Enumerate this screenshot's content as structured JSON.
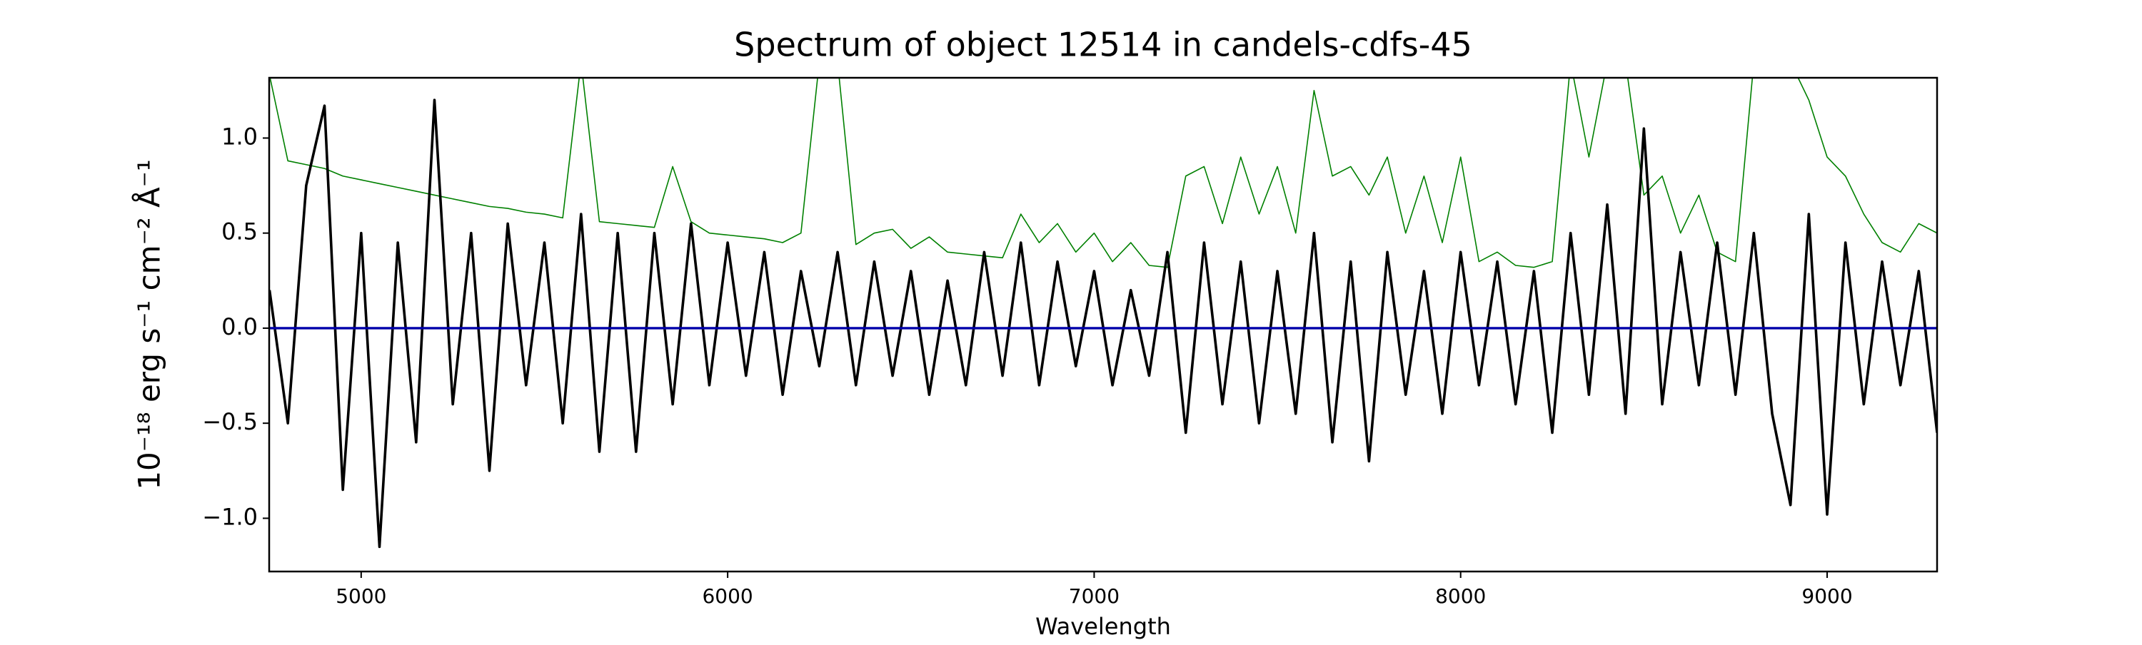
{
  "chart_data": {
    "type": "line",
    "title": "Spectrum of object 12514 in candels-cdfs-45",
    "xlabel": "Wavelength",
    "ylabel": "10⁻¹⁸ erg s⁻¹ cm⁻² Å⁻¹",
    "x": [
      4750,
      4800,
      4850,
      4900,
      4950,
      5000,
      5050,
      5100,
      5150,
      5200,
      5250,
      5300,
      5350,
      5400,
      5450,
      5500,
      5550,
      5600,
      5650,
      5700,
      5750,
      5800,
      5850,
      5900,
      5950,
      6000,
      6050,
      6100,
      6150,
      6200,
      6250,
      6300,
      6350,
      6400,
      6450,
      6500,
      6550,
      6600,
      6650,
      6700,
      6750,
      6800,
      6850,
      6900,
      6950,
      7000,
      7050,
      7100,
      7150,
      7200,
      7250,
      7300,
      7350,
      7400,
      7450,
      7500,
      7550,
      7600,
      7650,
      7700,
      7750,
      7800,
      7850,
      7900,
      7950,
      8000,
      8050,
      8100,
      8150,
      8200,
      8250,
      8300,
      8350,
      8400,
      8450,
      8500,
      8550,
      8600,
      8650,
      8700,
      8750,
      8800,
      8850,
      8900,
      8950,
      9000,
      9050,
      9100,
      9150,
      9200,
      9250,
      9300
    ],
    "series": [
      {
        "color": "#008000",
        "values": [
          1.33,
          0.88,
          0.86,
          0.84,
          0.8,
          0.78,
          0.76,
          0.74,
          0.72,
          0.7,
          0.68,
          0.66,
          0.64,
          0.63,
          0.61,
          0.6,
          0.58,
          1.4,
          0.56,
          0.55,
          0.54,
          0.53,
          0.85,
          0.56,
          0.5,
          0.49,
          0.48,
          0.47,
          0.45,
          0.5,
          1.4,
          1.4,
          0.44,
          0.5,
          0.52,
          0.42,
          0.48,
          0.4,
          0.39,
          0.38,
          0.37,
          0.6,
          0.45,
          0.55,
          0.4,
          0.5,
          0.35,
          0.45,
          0.33,
          0.32,
          0.8,
          0.85,
          0.55,
          0.9,
          0.6,
          0.85,
          0.5,
          1.25,
          0.8,
          0.85,
          0.7,
          0.9,
          0.5,
          0.8,
          0.45,
          0.9,
          0.35,
          0.4,
          0.33,
          0.32,
          0.35,
          1.4,
          0.9,
          1.4,
          1.4,
          0.7,
          0.8,
          0.5,
          0.7,
          0.4,
          0.35,
          1.4,
          1.4,
          1.4,
          1.2,
          0.9,
          0.8,
          0.6,
          0.45,
          0.4,
          0.55,
          0.5
        ]
      },
      {
        "color": "#000000",
        "values": [
          0.2,
          -0.5,
          0.75,
          1.17,
          -0.85,
          0.5,
          -1.15,
          0.45,
          -0.6,
          1.2,
          -0.4,
          0.5,
          -0.75,
          0.55,
          -0.3,
          0.45,
          -0.5,
          0.6,
          -0.65,
          0.5,
          -0.65,
          0.5,
          -0.4,
          0.55,
          -0.3,
          0.45,
          -0.25,
          0.4,
          -0.35,
          0.3,
          -0.2,
          0.4,
          -0.3,
          0.35,
          -0.25,
          0.3,
          -0.35,
          0.25,
          -0.3,
          0.4,
          -0.25,
          0.45,
          -0.3,
          0.35,
          -0.2,
          0.3,
          -0.3,
          0.2,
          -0.25,
          0.4,
          -0.55,
          0.45,
          -0.4,
          0.35,
          -0.5,
          0.3,
          -0.45,
          0.5,
          -0.6,
          0.35,
          -0.7,
          0.4,
          -0.35,
          0.3,
          -0.45,
          0.4,
          -0.3,
          0.35,
          -0.4,
          0.3,
          -0.55,
          0.5,
          -0.35,
          0.65,
          -0.45,
          1.05,
          -0.4,
          0.4,
          -0.3,
          0.45,
          -0.35,
          0.5,
          -0.45,
          -0.93,
          0.6,
          -0.98,
          0.45,
          -0.4,
          0.35,
          -0.3,
          0.3,
          -0.55
        ]
      },
      {
        "color": "#0000aa",
        "values": [
          0,
          0,
          0,
          0,
          0,
          0,
          0,
          0,
          0,
          0,
          0,
          0,
          0,
          0,
          0,
          0,
          0,
          0,
          0,
          0,
          0,
          0,
          0,
          0,
          0,
          0,
          0,
          0,
          0,
          0,
          0,
          0,
          0,
          0,
          0,
          0,
          0,
          0,
          0,
          0,
          0,
          0,
          0,
          0,
          0,
          0,
          0,
          0,
          0,
          0,
          0,
          0,
          0,
          0,
          0,
          0,
          0,
          0,
          0,
          0,
          0,
          0,
          0,
          0,
          0,
          0,
          0,
          0,
          0,
          0,
          0,
          0,
          0,
          0,
          0,
          0,
          0,
          0,
          0,
          0,
          0,
          0,
          0,
          0,
          0,
          0,
          0,
          0,
          0,
          0,
          0,
          0
        ]
      }
    ],
    "xlim": [
      4749,
      9300
    ],
    "ylim": [
      -1.28,
      1.317
    ],
    "xticks": [
      5000,
      6000,
      7000,
      8000,
      9000
    ],
    "yticks": [
      {
        "value": -1,
        "label": "−1.0"
      },
      {
        "value": -0.5,
        "label": "−0.5"
      },
      {
        "value": 0,
        "label": "0.0"
      },
      {
        "value": 0.5,
        "label": "0.5"
      },
      {
        "value": 1,
        "label": "1.0"
      }
    ],
    "grid": false
  }
}
